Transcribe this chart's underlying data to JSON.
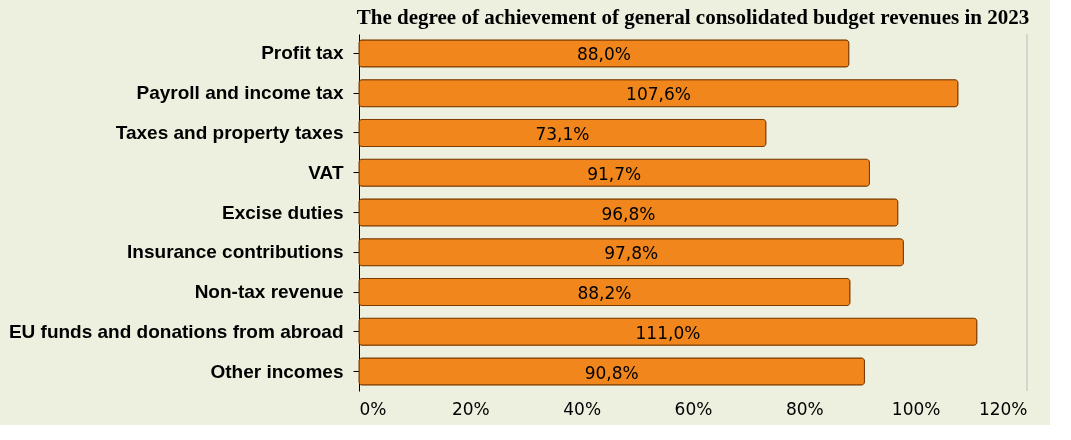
{
  "chart_data": {
    "type": "bar",
    "orientation": "horizontal",
    "title": "The degree of achievement of general consolidated budget revenues in 2023",
    "categories": [
      "Profit tax",
      "Payroll and income tax",
      "Taxes and property taxes",
      "VAT",
      "Excise duties",
      "Insurance contributions",
      "Non-tax revenue",
      "EU funds and donations from abroad",
      "Other incomes"
    ],
    "values": [
      88.0,
      107.6,
      73.1,
      91.7,
      96.8,
      97.8,
      88.2,
      111.0,
      90.8
    ],
    "value_labels": [
      "88,0%",
      "107,6%",
      "73,1%",
      "91,7%",
      "96,8%",
      "97,8%",
      "88,2%",
      "111,0%",
      "90,8%"
    ],
    "color": "#f0861c",
    "xlim": [
      0,
      120
    ],
    "xticks": [
      {
        "value": 0,
        "label": "0%"
      },
      {
        "value": 20,
        "label": "20%"
      },
      {
        "value": 40,
        "label": "40%"
      },
      {
        "value": 60,
        "label": "60%"
      },
      {
        "value": 80,
        "label": "80%"
      },
      {
        "value": 100,
        "label": "100%"
      },
      {
        "value": 120,
        "label": "120%"
      }
    ],
    "grid": false
  }
}
